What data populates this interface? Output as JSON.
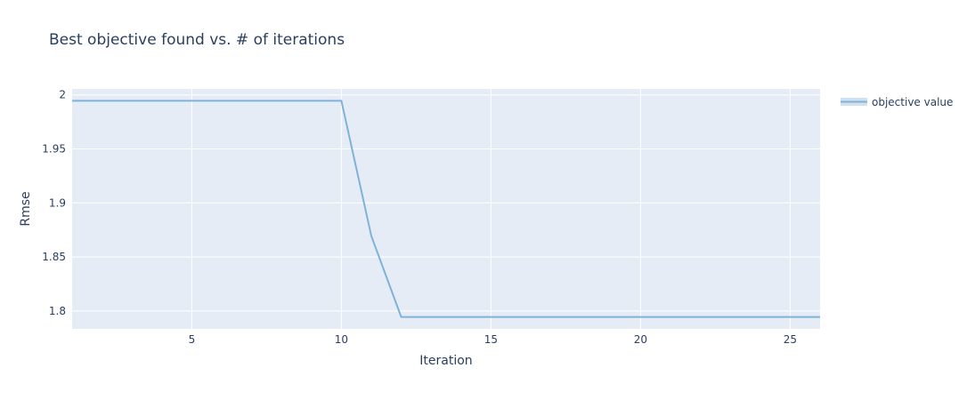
{
  "chart_data": {
    "type": "line",
    "title": "Best objective found vs. # of iterations",
    "xlabel": "Iteration",
    "ylabel": "Rmse",
    "xlim": [
      1,
      26
    ],
    "ylim": [
      1.7835,
      2.0055
    ],
    "xticks": [
      5,
      10,
      15,
      20,
      25
    ],
    "xtick_labels": [
      "5",
      "10",
      "15",
      "20",
      "25"
    ],
    "yticks": [
      1.8,
      1.85,
      1.9,
      1.95,
      2
    ],
    "ytick_labels": [
      "1.8",
      "1.85",
      "1.9",
      "1.95",
      "2"
    ],
    "grid": true,
    "legend_position": "top-right",
    "colors": {
      "plot_bg": "#e5ecf6",
      "grid": "#ffffff",
      "line": "#7fb2d9",
      "legend_swatch_fill": "#cfe1f0",
      "text": "#2a3f5f"
    },
    "series": [
      {
        "name": "objective value",
        "x": [
          1,
          2,
          3,
          4,
          5,
          6,
          7,
          8,
          9,
          10,
          11,
          12,
          13,
          14,
          15,
          16,
          17,
          18,
          19,
          20,
          21,
          22,
          23,
          24,
          25,
          26
        ],
        "y": [
          1.9945,
          1.9945,
          1.9945,
          1.9945,
          1.9945,
          1.9945,
          1.9945,
          1.9945,
          1.9945,
          1.9945,
          1.8695,
          1.7945,
          1.7945,
          1.7945,
          1.7945,
          1.7945,
          1.7945,
          1.7945,
          1.7945,
          1.7945,
          1.7945,
          1.7945,
          1.7945,
          1.7945,
          1.7945,
          1.7945
        ]
      }
    ]
  }
}
